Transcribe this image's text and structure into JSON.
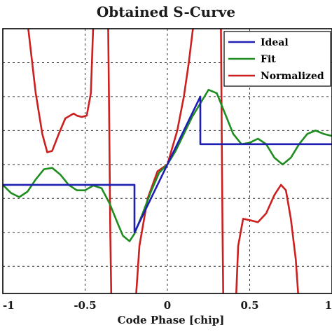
{
  "chart_data": {
    "type": "line",
    "title": "Obtained S-Curve",
    "xlabel": "Code Phase [chip]",
    "ylabel": "",
    "xlim": [
      -1,
      1
    ],
    "ylim": [
      -1.9,
      2.0
    ],
    "grid": true,
    "legend_position": "top-right",
    "x_ticks": [
      -1,
      -0.5,
      0,
      0.5,
      1
    ],
    "x_tick_labels": [
      "-1",
      "-0.5",
      "0",
      "0.5",
      "1"
    ],
    "y_grid_values": [
      1.5,
      1.0,
      0.5,
      0.0,
      -0.5,
      -1.0,
      -1.5
    ],
    "series": [
      {
        "name": "Ideal",
        "color": "#1f1fb4",
        "points": [
          [
            -1.0,
            -0.3
          ],
          [
            -0.2,
            -0.3
          ],
          [
            -0.2,
            -1.0
          ],
          [
            0.2,
            1.0
          ],
          [
            0.2,
            0.3
          ],
          [
            1.0,
            0.3
          ]
        ]
      },
      {
        "name": "Fit",
        "color": "#1e8c1e",
        "points": [
          [
            -1.0,
            -0.3
          ],
          [
            -0.95,
            -0.42
          ],
          [
            -0.9,
            -0.48
          ],
          [
            -0.85,
            -0.4
          ],
          [
            -0.8,
            -0.22
          ],
          [
            -0.75,
            -0.07
          ],
          [
            -0.7,
            -0.05
          ],
          [
            -0.65,
            -0.15
          ],
          [
            -0.6,
            -0.3
          ],
          [
            -0.55,
            -0.38
          ],
          [
            -0.5,
            -0.38
          ],
          [
            -0.45,
            -0.31
          ],
          [
            -0.4,
            -0.35
          ],
          [
            -0.35,
            -0.58
          ],
          [
            -0.3,
            -0.88
          ],
          [
            -0.27,
            -1.05
          ],
          [
            -0.23,
            -1.13
          ],
          [
            -0.2,
            -1.02
          ],
          [
            -0.15,
            -0.72
          ],
          [
            -0.1,
            -0.4
          ],
          [
            -0.05,
            -0.12
          ],
          [
            0.0,
            0.0
          ],
          [
            0.05,
            0.2
          ],
          [
            0.1,
            0.45
          ],
          [
            0.15,
            0.7
          ],
          [
            0.2,
            0.9
          ],
          [
            0.25,
            1.1
          ],
          [
            0.3,
            1.05
          ],
          [
            0.35,
            0.75
          ],
          [
            0.4,
            0.45
          ],
          [
            0.45,
            0.3
          ],
          [
            0.5,
            0.32
          ],
          [
            0.55,
            0.38
          ],
          [
            0.6,
            0.3
          ],
          [
            0.65,
            0.1
          ],
          [
            0.7,
            0.0
          ],
          [
            0.75,
            0.1
          ],
          [
            0.8,
            0.3
          ],
          [
            0.85,
            0.45
          ],
          [
            0.9,
            0.5
          ],
          [
            0.95,
            0.45
          ],
          [
            1.0,
            0.42
          ]
        ]
      },
      {
        "name": "Normalized",
        "color": "#cc1f1f",
        "segments": [
          [
            [
              -0.85,
              2.1
            ],
            [
              -0.8,
              1.05
            ],
            [
              -0.76,
              0.45
            ],
            [
              -0.73,
              0.18
            ],
            [
              -0.7,
              0.2
            ],
            [
              -0.66,
              0.45
            ],
            [
              -0.62,
              0.68
            ],
            [
              -0.57,
              0.75
            ],
            [
              -0.55,
              0.72
            ],
            [
              -0.52,
              0.7
            ],
            [
              -0.49,
              0.72
            ],
            [
              -0.465,
              1.05
            ],
            [
              -0.45,
              2.1
            ]
          ],
          [
            [
              -0.36,
              2.1
            ],
            [
              -0.353,
              0.5
            ],
            [
              -0.347,
              -1.0
            ],
            [
              -0.34,
              -2.1
            ]
          ],
          [
            [
              -0.195,
              -2.1
            ],
            [
              -0.17,
              -1.2
            ],
            [
              -0.12,
              -0.5
            ],
            [
              -0.06,
              -0.1
            ],
            [
              0.0,
              0.0
            ],
            [
              0.06,
              0.5
            ],
            [
              0.1,
              1.0
            ],
            [
              0.13,
              1.5
            ],
            [
              0.16,
              2.1
            ]
          ],
          [
            [
              0.325,
              2.1
            ],
            [
              0.33,
              0.5
            ],
            [
              0.335,
              -1.0
            ],
            [
              0.34,
              -2.1
            ]
          ],
          [
            [
              0.415,
              -2.1
            ],
            [
              0.43,
              -1.2
            ],
            [
              0.46,
              -0.8
            ],
            [
              0.5,
              -0.82
            ],
            [
              0.55,
              -0.85
            ],
            [
              0.6,
              -0.72
            ],
            [
              0.65,
              -0.45
            ],
            [
              0.69,
              -0.3
            ],
            [
              0.72,
              -0.38
            ],
            [
              0.75,
              -0.8
            ],
            [
              0.78,
              -1.4
            ],
            [
              0.8,
              -2.1
            ]
          ]
        ]
      }
    ]
  }
}
